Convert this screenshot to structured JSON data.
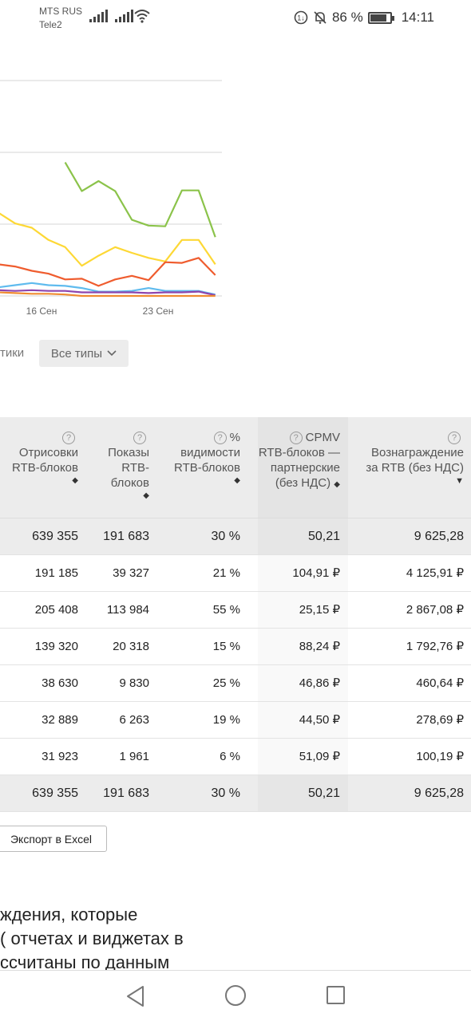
{
  "statusbar": {
    "carrier1": "MTS RUS",
    "carrier2": "Tele2",
    "battery_percent": "86 %",
    "battery_level": 0.86,
    "time": "14:11"
  },
  "chart_data": {
    "type": "line",
    "x_tick_labels": [
      "16 Сен",
      "23 Сен"
    ],
    "series": [
      {
        "color": "#8bc34a",
        "values": [
          null,
          null,
          null,
          null,
          100,
          60,
          74,
          60,
          20,
          12,
          11,
          61,
          61,
          -4
        ]
      },
      {
        "color": "#fdd835",
        "values": [
          30,
          15,
          9,
          -8,
          -18,
          -44,
          -30,
          -18,
          -26,
          -33,
          -38,
          -8,
          -8,
          -42
        ]
      },
      {
        "color": "#ef5c2e",
        "values": [
          -42,
          -45,
          -51,
          -55,
          -63,
          -62,
          -72,
          -63,
          -58,
          -64,
          -39,
          -40,
          -33,
          -57
        ]
      },
      {
        "color": "#5fbbee",
        "values": [
          -74,
          -71,
          -68,
          -71,
          -72,
          -75,
          -80,
          -80,
          -79,
          -75,
          -79,
          -79,
          -79,
          -84
        ]
      },
      {
        "color": "#8e44ad",
        "values": [
          -78,
          -79,
          -78,
          -79,
          -79,
          -81,
          -81,
          -81,
          -81,
          -82,
          -81,
          -81,
          -80,
          -85
        ]
      },
      {
        "color": "#f08c30",
        "values": [
          -81,
          -82,
          -83,
          -83,
          -84,
          -86,
          -86,
          -86,
          -86,
          -86,
          -86,
          -86,
          -86,
          -86
        ]
      }
    ],
    "grid": true
  },
  "filter": {
    "label": "тики",
    "select_value": "Все типы"
  },
  "table": {
    "headers": {
      "renders": [
        "Отрисовки",
        "RTB-блоков"
      ],
      "impressions": [
        "Показы",
        "RTB-",
        "блоков"
      ],
      "visibility_pct": "%",
      "visibility": [
        "видимости",
        "RTB-блоков"
      ],
      "cpmv": "CPMV",
      "cpmv_lines": [
        "RTB-блоков —",
        "партнерские",
        "(без НДС)"
      ],
      "reward": [
        "Вознаграждение",
        "за RTB (без НДС)"
      ]
    },
    "rows": [
      {
        "renders": "639 355",
        "impressions": "191 683",
        "visibility": "30 %",
        "cpmv": "50,21",
        "reward": "9 625,28",
        "total": true
      },
      {
        "renders": "191 185",
        "impressions": "39 327",
        "visibility": "21 %",
        "cpmv": "104,91 ₽",
        "reward": "4 125,91 ₽"
      },
      {
        "renders": "205 408",
        "impressions": "113 984",
        "visibility": "55 %",
        "cpmv": "25,15 ₽",
        "reward": "2 867,08 ₽"
      },
      {
        "renders": "139 320",
        "impressions": "20 318",
        "visibility": "15 %",
        "cpmv": "88,24 ₽",
        "reward": "1 792,76 ₽"
      },
      {
        "renders": "38 630",
        "impressions": "9 830",
        "visibility": "25 %",
        "cpmv": "46,86 ₽",
        "reward": "460,64 ₽"
      },
      {
        "renders": "32 889",
        "impressions": "6 263",
        "visibility": "19 %",
        "cpmv": "44,50 ₽",
        "reward": "278,69 ₽"
      },
      {
        "renders": "31 923",
        "impressions": "1 961",
        "visibility": "6 %",
        "cpmv": "51,09 ₽",
        "reward": "100,19 ₽"
      },
      {
        "renders": "639 355",
        "impressions": "191 683",
        "visibility": "30 %",
        "cpmv": "50,21",
        "reward": "9 625,28",
        "total": true
      }
    ]
  },
  "export_button": "Экспорт в Excel",
  "footnote": {
    "line1": "ждения, которые",
    "line2": "( отчетах и виджетах в",
    "line3": "ссчитаны по данным"
  }
}
